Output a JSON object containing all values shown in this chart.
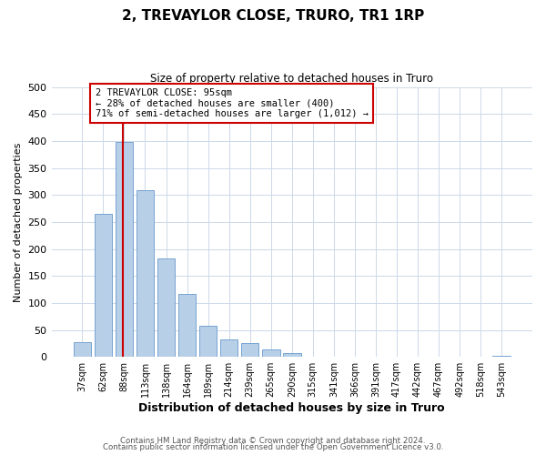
{
  "title": "2, TREVAYLOR CLOSE, TRURO, TR1 1RP",
  "subtitle": "Size of property relative to detached houses in Truro",
  "xlabel": "Distribution of detached houses by size in Truro",
  "ylabel": "Number of detached properties",
  "bar_labels": [
    "37sqm",
    "62sqm",
    "88sqm",
    "113sqm",
    "138sqm",
    "164sqm",
    "189sqm",
    "214sqm",
    "239sqm",
    "265sqm",
    "290sqm",
    "315sqm",
    "341sqm",
    "366sqm",
    "391sqm",
    "417sqm",
    "442sqm",
    "467sqm",
    "492sqm",
    "518sqm",
    "543sqm"
  ],
  "bar_values": [
    28,
    265,
    398,
    308,
    183,
    117,
    58,
    32,
    25,
    14,
    7,
    0,
    0,
    0,
    0,
    0,
    0,
    0,
    0,
    0,
    2
  ],
  "bar_color": "#b8cfe8",
  "bar_edge_color": "#6699cc",
  "vline_color": "#cc0000",
  "vline_x_idx": 2,
  "annotation_text": "2 TREVAYLOR CLOSE: 95sqm\n← 28% of detached houses are smaller (400)\n71% of semi-detached houses are larger (1,012) →",
  "annotation_box_color": "#ffffff",
  "annotation_box_edge": "#cc0000",
  "ylim": [
    0,
    500
  ],
  "yticks": [
    0,
    50,
    100,
    150,
    200,
    250,
    300,
    350,
    400,
    450,
    500
  ],
  "footer1": "Contains HM Land Registry data © Crown copyright and database right 2024.",
  "footer2": "Contains public sector information licensed under the Open Government Licence v3.0.",
  "bg_color": "#ffffff",
  "grid_color": "#ccd9e8"
}
